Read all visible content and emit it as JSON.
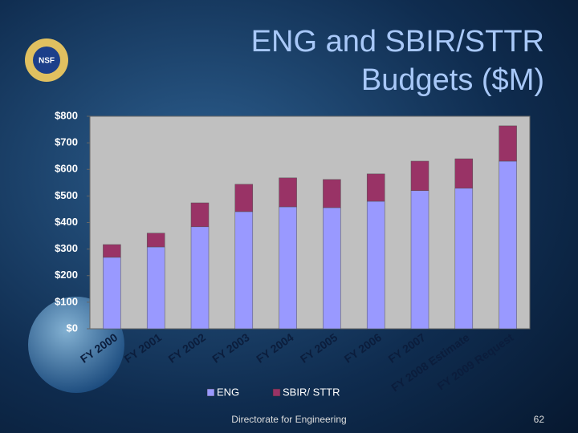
{
  "logo": "NSF",
  "footer": "Directorate for Engineering",
  "page_number": "62",
  "chart_data": {
    "type": "stacked_bar",
    "title": "ENG and SBIR/STTR Budgets ($M)",
    "categories": [
      "FY 2000",
      "FY 2001",
      "FY 2002",
      "FY 2003",
      "FY 2004",
      "FY 2005",
      "FY 2006",
      "FY 2007",
      "FY 2008 Estimate",
      "FY 2009 Request"
    ],
    "series": [
      {
        "name": "ENG",
        "color": "#9999ff",
        "values": [
          269,
          308,
          384,
          441,
          459,
          456,
          480,
          520,
          529,
          631
        ]
      },
      {
        "name": "SBIR/ STTR",
        "color": "#993366",
        "values": [
          48,
          52,
          90,
          103,
          109,
          106,
          103,
          111,
          111,
          133
        ]
      }
    ],
    "ylim": [
      0,
      800
    ],
    "yticks": [
      {
        "value": 0,
        "label": "$0"
      },
      {
        "value": 100,
        "label": "$100"
      },
      {
        "value": 200,
        "label": "$200"
      },
      {
        "value": 300,
        "label": "$300"
      },
      {
        "value": 400,
        "label": "$400"
      },
      {
        "value": 500,
        "label": "$500"
      },
      {
        "value": 600,
        "label": "$600"
      },
      {
        "value": 700,
        "label": "$700"
      },
      {
        "value": 800,
        "label": "$800"
      }
    ],
    "legend": "bottom"
  }
}
